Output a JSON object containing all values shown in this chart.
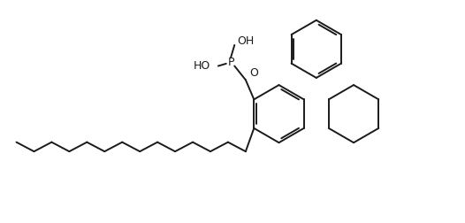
{
  "bg_color": "#ffffff",
  "line_color": "#1a1a1a",
  "line_width": 1.4,
  "fig_width": 5.26,
  "fig_height": 2.52,
  "dpi": 100,
  "xlim": [
    0,
    10
  ],
  "ylim": [
    0,
    4.8
  ],
  "p_label": "P",
  "oh_label": "OH",
  "ho_label": "HO",
  "o_label": "O",
  "font_size": 9
}
